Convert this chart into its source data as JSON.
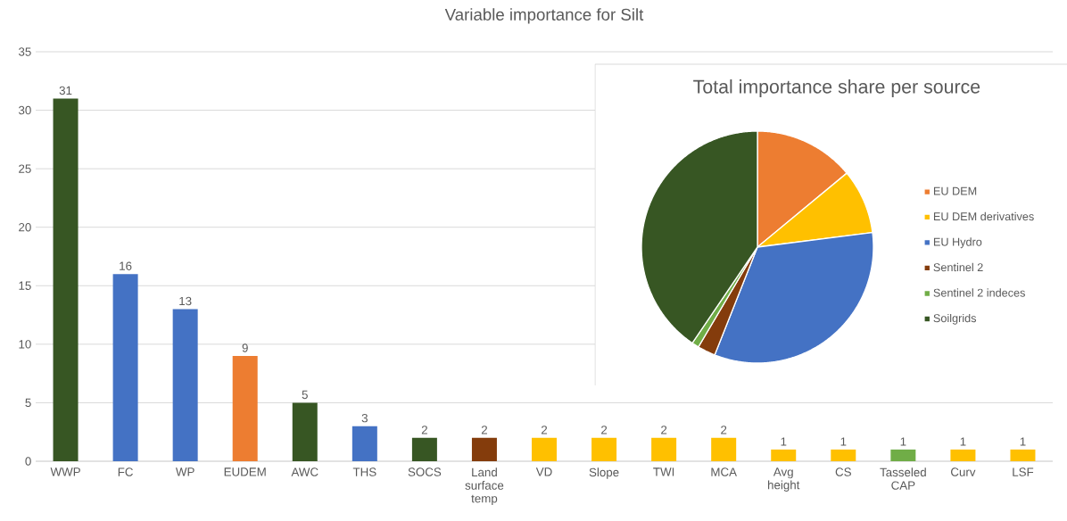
{
  "chart_data": [
    {
      "type": "bar",
      "title": "Variable importance for Silt",
      "categories": [
        "WWP",
        "FC",
        "WP",
        "EUDEM",
        "AWC",
        "THS",
        "SOCS",
        "Land surface temp",
        "VD",
        "Slope",
        "TWI",
        "MCA",
        "Avg height",
        "CS",
        "Tasseled CAP",
        "Curv",
        "LSF"
      ],
      "values": [
        31,
        16,
        13,
        9,
        5,
        3,
        2,
        2,
        2,
        2,
        2,
        2,
        1,
        1,
        1,
        1,
        1
      ],
      "colors": [
        "#375623",
        "#4472c4",
        "#4472c4",
        "#ed7d31",
        "#375623",
        "#4472c4",
        "#375623",
        "#843c0c",
        "#ffc000",
        "#ffc000",
        "#ffc000",
        "#ffc000",
        "#ffc000",
        "#ffc000",
        "#70ad47",
        "#ffc000",
        "#ffc000"
      ],
      "ylim": [
        0,
        35
      ],
      "yticks": [
        0,
        5,
        10,
        15,
        20,
        25,
        30,
        35
      ],
      "grid": "y",
      "data_labels": true
    },
    {
      "type": "pie",
      "title": "Total importance share per source",
      "categories": [
        "EU DEM",
        "EU DEM derivatives",
        "EU Hydro",
        "Sentinel 2",
        "Sentinel 2 indeces",
        "Soilgrids"
      ],
      "values": [
        14,
        9,
        33,
        2.5,
        1,
        40.5
      ],
      "colors": [
        "#ed7d31",
        "#ffc000",
        "#4472c4",
        "#843c0c",
        "#70ad47",
        "#375623"
      ],
      "legend": "right"
    }
  ]
}
